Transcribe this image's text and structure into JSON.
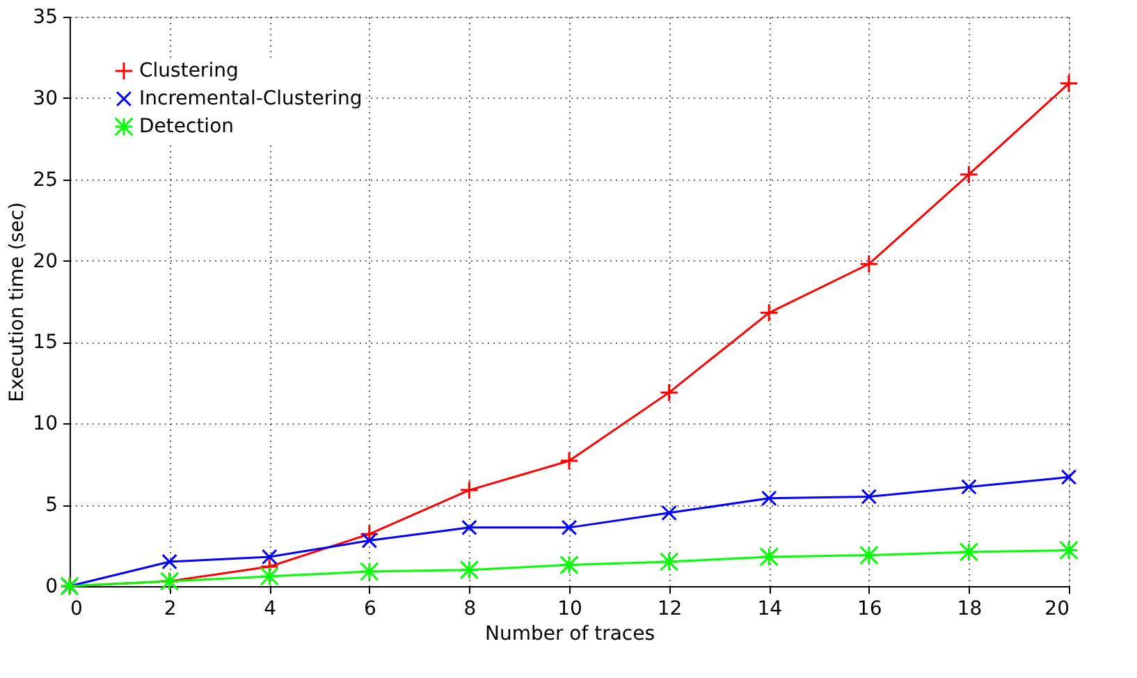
{
  "chart_data": {
    "type": "line",
    "xlabel": "Number of traces",
    "ylabel": "Execution time (sec)",
    "x": [
      0,
      2,
      4,
      6,
      8,
      10,
      12,
      14,
      16,
      18,
      20
    ],
    "series": [
      {
        "name": "Clustering",
        "color": "#ff0000",
        "marker": "cross",
        "values": [
          0,
          0.3,
          1.2,
          3.2,
          5.9,
          7.7,
          11.9,
          16.8,
          19.8,
          25.3,
          30.9
        ]
      },
      {
        "name": "Incremental-Clustering",
        "color": "#0000ff",
        "marker": "cross",
        "values": [
          0,
          1.5,
          1.8,
          2.8,
          3.6,
          3.6,
          4.5,
          5.4,
          5.5,
          6.1,
          6.7
        ]
      },
      {
        "name": "Detection",
        "color": "#00ff00",
        "marker": "cross",
        "values": [
          0,
          0.3,
          0.6,
          0.9,
          1.0,
          1.3,
          1.5,
          1.8,
          1.9,
          2.1,
          2.2
        ]
      }
    ],
    "xlim": [
      0,
      20
    ],
    "xticks": [
      0,
      2,
      4,
      6,
      8,
      10,
      12,
      14,
      16,
      18,
      20
    ],
    "ylim": [
      0,
      35
    ],
    "yticks": [
      0,
      5,
      10,
      15,
      20,
      25,
      30,
      35
    ],
    "grid": true,
    "legend": "top left",
    "line_style": "solid"
  }
}
